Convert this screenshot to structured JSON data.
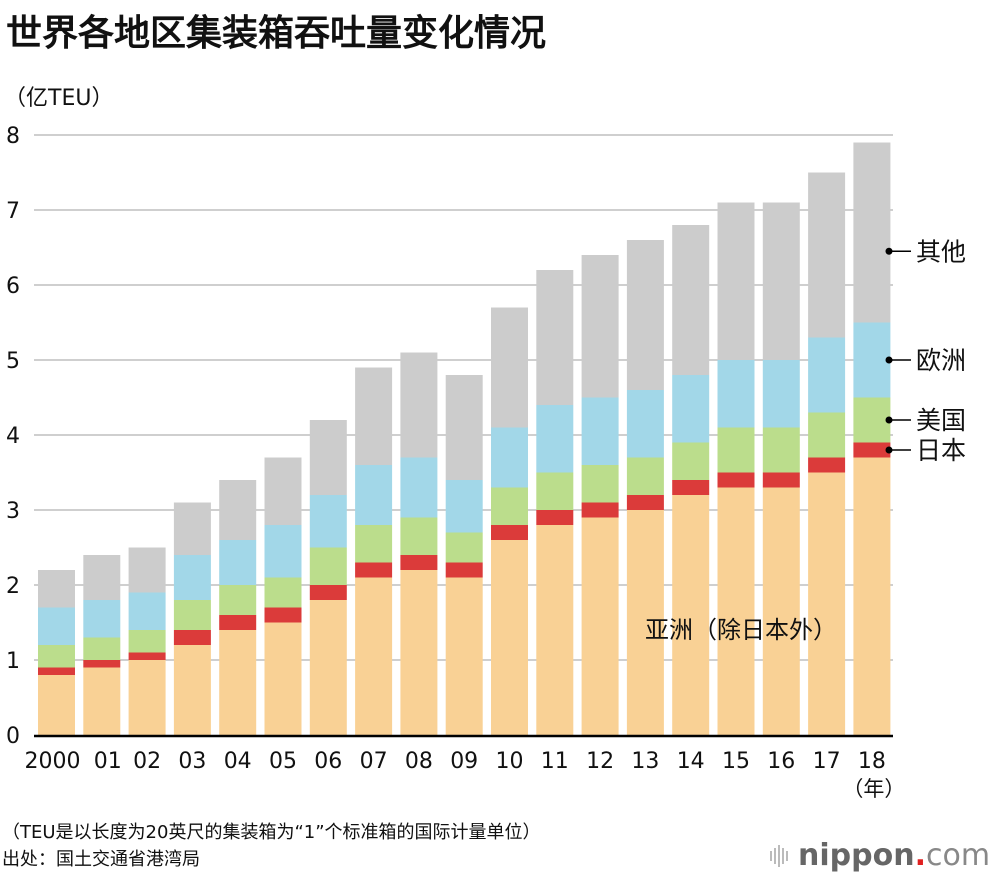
{
  "header": {
    "title": "世界各地区集装箱吞吐量变化情况",
    "unit": "（亿TEU）"
  },
  "footer": {
    "note": "（TEU是以长度为20英尺的集装箱为“1”个标准箱的国际计量单位）",
    "source": "出处：国土交通省港湾局",
    "logo": {
      "icon": "sound-bars-icon",
      "brand": "nippon",
      "dot": ".",
      "tld": "com",
      "dot_color": "#e02020"
    }
  },
  "chart_data": {
    "type": "bar",
    "stacked": true,
    "title": "世界各地区集装箱吞吐量变化情况",
    "ylabel": "（亿TEU）",
    "xlabel": "（年）",
    "ylim": [
      0,
      8
    ],
    "yticks": [
      0,
      1,
      2,
      3,
      4,
      5,
      6,
      7,
      8
    ],
    "grid": true,
    "categories": [
      "2000",
      "01",
      "02",
      "03",
      "04",
      "05",
      "06",
      "07",
      "08",
      "09",
      "10",
      "11",
      "12",
      "13",
      "14",
      "15",
      "16",
      "17",
      "18"
    ],
    "series": [
      {
        "name": "亚洲（除日本外）",
        "color": "#f9d195",
        "values": [
          0.8,
          0.9,
          1.0,
          1.2,
          1.4,
          1.5,
          1.8,
          2.1,
          2.2,
          2.1,
          2.6,
          2.8,
          2.9,
          3.0,
          3.2,
          3.3,
          3.3,
          3.5,
          3.7
        ]
      },
      {
        "name": "日本",
        "color": "#db3b3a",
        "values": [
          0.1,
          0.1,
          0.1,
          0.2,
          0.2,
          0.2,
          0.2,
          0.2,
          0.2,
          0.2,
          0.2,
          0.2,
          0.2,
          0.2,
          0.2,
          0.2,
          0.2,
          0.2,
          0.2
        ]
      },
      {
        "name": "美国",
        "color": "#bbdd8c",
        "values": [
          0.3,
          0.3,
          0.3,
          0.4,
          0.4,
          0.4,
          0.5,
          0.5,
          0.5,
          0.4,
          0.5,
          0.5,
          0.5,
          0.5,
          0.5,
          0.6,
          0.6,
          0.6,
          0.6
        ]
      },
      {
        "name": "欧洲",
        "color": "#a2d7e8",
        "values": [
          0.5,
          0.5,
          0.5,
          0.6,
          0.6,
          0.7,
          0.7,
          0.8,
          0.8,
          0.7,
          0.8,
          0.9,
          0.9,
          0.9,
          0.9,
          0.9,
          0.9,
          1.0,
          1.0
        ]
      },
      {
        "name": "其他",
        "color": "#cccccc",
        "values": [
          0.5,
          0.6,
          0.6,
          0.7,
          0.8,
          0.9,
          1.0,
          1.3,
          1.4,
          1.4,
          1.6,
          1.8,
          1.9,
          2.0,
          2.0,
          2.1,
          2.1,
          2.2,
          2.4
        ]
      }
    ],
    "totals": [
      2.2,
      2.4,
      2.5,
      3.1,
      3.4,
      3.7,
      4.2,
      4.9,
      5.1,
      4.8,
      5.7,
      6.2,
      6.4,
      6.6,
      6.8,
      7.1,
      7.1,
      7.5,
      7.9
    ],
    "legend": {
      "placement": "right",
      "callouts": [
        {
          "label": "其他",
          "series": 4
        },
        {
          "label": "欧洲",
          "series": 3
        },
        {
          "label": "美国",
          "series": 2
        },
        {
          "label": "日本",
          "series": 1
        }
      ],
      "inline_label": {
        "label": "亚洲（除日本外）",
        "series": 0
      }
    }
  }
}
